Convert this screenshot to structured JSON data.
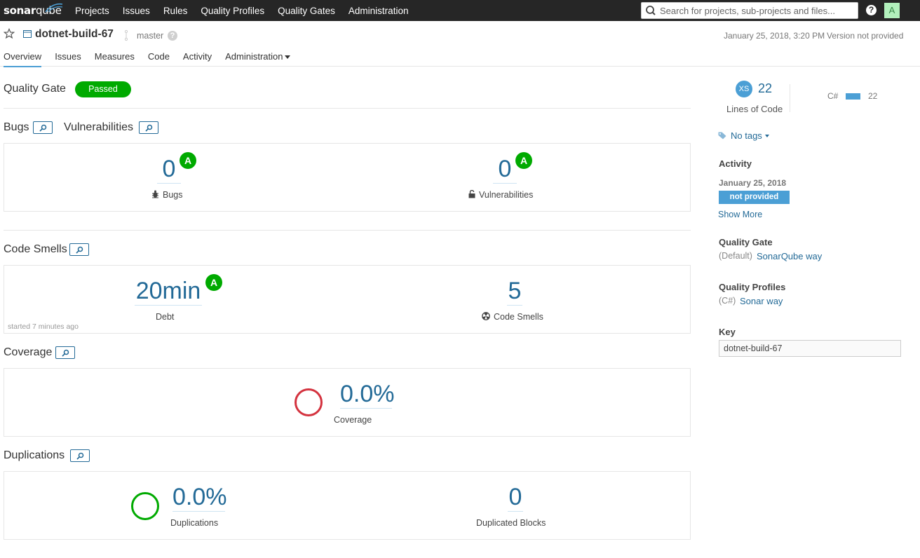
{
  "navbar": {
    "logo_text_a": "sonar",
    "logo_text_b": "qube",
    "links": [
      "Projects",
      "Issues",
      "Rules",
      "Quality Profiles",
      "Quality Gates",
      "Administration"
    ],
    "search_placeholder": "Search for projects, sub-projects and files...",
    "help_label": "?",
    "avatar_letter": "A"
  },
  "project": {
    "name": "dotnet-build-67",
    "branch": "master",
    "analysis_date": "January 25, 2018, 3:20 PM",
    "version": "Version not provided",
    "tabs": [
      "Overview",
      "Issues",
      "Measures",
      "Code",
      "Activity",
      "Administration"
    ],
    "active_tab": "Overview"
  },
  "quality_gate": {
    "title": "Quality Gate",
    "status": "Passed",
    "status_color": "#00aa00"
  },
  "reliability": {
    "title_bugs": "Bugs",
    "title_vulns": "Vulnerabilities",
    "bugs_value": "0",
    "bugs_rating": "A",
    "bugs_label": "Bugs",
    "vulns_value": "0",
    "vulns_rating": "A",
    "vulns_label": "Vulnerabilities"
  },
  "maintainability": {
    "title": "Code Smells",
    "debt_value": "20min",
    "debt_rating": "A",
    "debt_label": "Debt",
    "started": "started 7 minutes ago",
    "smells_value": "5",
    "smells_label": "Code Smells"
  },
  "coverage": {
    "title": "Coverage",
    "value": "0.0%",
    "label": "Coverage",
    "donut_color": "#d4333f"
  },
  "duplications": {
    "title": "Duplications",
    "value": "0.0%",
    "label": "Duplications",
    "blocks_value": "0",
    "blocks_label": "Duplicated Blocks",
    "donut_color": "#00aa00"
  },
  "sidebar": {
    "size_rating": "XS",
    "lines_of_code": "22",
    "lines_label": "Lines of Code",
    "language": "C#",
    "language_lines": "22",
    "tags": "No tags",
    "activity_title": "Activity",
    "activity_date": "January 25, 2018",
    "activity_badge": "not provided",
    "show_more": "Show More",
    "qg_title": "Quality Gate",
    "qg_default": "(Default)",
    "qg_link": "SonarQube way",
    "qp_title": "Quality Profiles",
    "qp_lang": "(C#)",
    "qp_link": "Sonar way",
    "key_title": "Key",
    "key_value": "dotnet-build-67"
  },
  "icons": [
    "search-icon",
    "help-icon",
    "star-icon",
    "project-icon",
    "branch-icon",
    "link-icon",
    "bug-icon",
    "lock-icon",
    "code-smell-icon",
    "tag-icon"
  ]
}
